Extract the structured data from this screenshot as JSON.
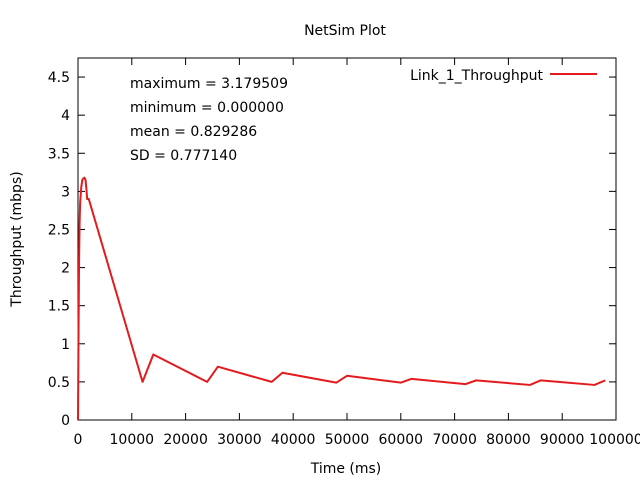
{
  "chart_data": {
    "type": "line",
    "title": "NetSim Plot",
    "xlabel": "Time (ms)",
    "ylabel": "Throughput (mbps)",
    "xlim": [
      0,
      100000
    ],
    "ylim": [
      0,
      4.75
    ],
    "x_ticks": [
      0,
      10000,
      20000,
      30000,
      40000,
      50000,
      60000,
      70000,
      80000,
      90000,
      100000
    ],
    "y_ticks": [
      0,
      0.5,
      1,
      1.5,
      2,
      2.5,
      3,
      3.5,
      4,
      4.5
    ],
    "y_tick_labels": [
      "0",
      "0.5",
      "1",
      "1.5",
      "2",
      "2.5",
      "3",
      "3.5",
      "4",
      "4.5"
    ],
    "grid": false,
    "legend_position": "top-right",
    "series": [
      {
        "name": "Link_1_Throughput",
        "color": "#e41a1c",
        "x": [
          0,
          100,
          200,
          300,
          400,
          500,
          600,
          800,
          1000,
          1200,
          1400,
          1600,
          1700,
          2000,
          12000,
          14000,
          24000,
          26000,
          36000,
          38000,
          48000,
          50000,
          60000,
          62000,
          72000,
          74000,
          84000,
          86000,
          96000,
          98000
        ],
        "y": [
          0,
          1.2,
          2.1,
          2.6,
          2.85,
          2.95,
          3.05,
          3.15,
          3.17,
          3.18,
          3.15,
          3.0,
          2.9,
          2.9,
          0.5,
          0.86,
          0.5,
          0.7,
          0.5,
          0.62,
          0.49,
          0.58,
          0.49,
          0.54,
          0.47,
          0.52,
          0.46,
          0.52,
          0.46,
          0.52
        ]
      }
    ],
    "annotations": [
      "maximum = 3.179509",
      "minimum = 0.000000",
      "mean = 0.829286",
      "SD = 0.777140"
    ]
  }
}
